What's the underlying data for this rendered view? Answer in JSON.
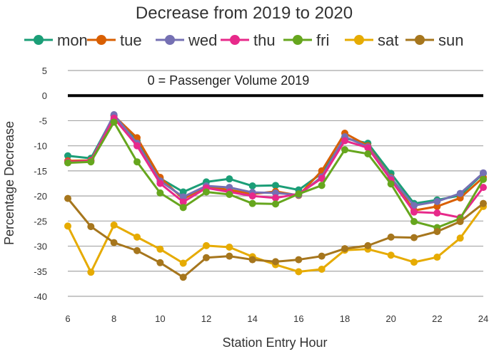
{
  "chart_data": {
    "type": "line",
    "title": "Decrease from 2019 to 2020",
    "xlabel": "Station Entry Hour",
    "ylabel": "Percentage Decrease",
    "xlim": [
      6,
      24
    ],
    "ylim": [
      -40,
      5
    ],
    "xticks": [
      6,
      8,
      10,
      12,
      14,
      16,
      18,
      20,
      22,
      24
    ],
    "yticks": [
      5,
      0,
      -5,
      -10,
      -15,
      -20,
      -25,
      -30,
      -35,
      -40
    ],
    "grid": true,
    "legend_position": "top",
    "reference_line": {
      "y": 0,
      "label": "0 = Passenger Volume 2019",
      "color": "#000000"
    },
    "x": [
      6,
      7,
      8,
      9,
      10,
      11,
      12,
      13,
      14,
      15,
      16,
      17,
      18,
      19,
      20,
      21,
      22,
      23,
      24
    ],
    "series": [
      {
        "name": "mon",
        "color": "#1b9e77",
        "values": [
          -12,
          -12.5,
          -4,
          -9,
          -16.5,
          -19.2,
          -17.2,
          -16.6,
          -18,
          -17.9,
          -18.8,
          -15.5,
          -8.5,
          -9.5,
          -15.5,
          -21.5,
          -20.8,
          -19.9,
          -15.5
        ]
      },
      {
        "name": "tue",
        "color": "#d95f02",
        "values": [
          -13,
          -12.9,
          -4,
          -8.4,
          -16.3,
          -20.6,
          -18.1,
          -18.8,
          -19.6,
          -19.1,
          -19.9,
          -15,
          -7.5,
          -10,
          -16.3,
          -22.9,
          -22.1,
          -20.4,
          -16.3
        ]
      },
      {
        "name": "wed",
        "color": "#7570b3",
        "values": [
          -13.3,
          -13,
          -3.8,
          -9.5,
          -17,
          -20.2,
          -18,
          -18.3,
          -19.3,
          -19.4,
          -19.8,
          -16.2,
          -8.2,
          -10.2,
          -16.4,
          -21.9,
          -21.1,
          -19.5,
          -15.4
        ]
      },
      {
        "name": "thu",
        "color": "#e7298a",
        "values": [
          -13.2,
          -13,
          -4.5,
          -10,
          -17.5,
          -21.2,
          -18.4,
          -19.2,
          -20,
          -20.4,
          -19.6,
          -16.5,
          -9,
          -10.4,
          -16.8,
          -23.2,
          -23.4,
          -24.3,
          -18.3
        ]
      },
      {
        "name": "fri",
        "color": "#66a61e",
        "values": [
          -13.4,
          -13.2,
          -5.3,
          -13.2,
          -19.4,
          -22.3,
          -19.2,
          -19.7,
          -21.5,
          -21.6,
          -19.6,
          -17.9,
          -10.8,
          -11.6,
          -17.6,
          -25.1,
          -26.3,
          -24.5,
          -16.7
        ]
      },
      {
        "name": "sat",
        "color": "#e6ab02",
        "values": [
          -26,
          -35.2,
          -25.8,
          -28.2,
          -30.6,
          -33.4,
          -29.9,
          -30.2,
          -32.1,
          -33.7,
          -35.1,
          -34.6,
          -30.8,
          -30.6,
          -31.8,
          -33.2,
          -32.2,
          -28.4,
          -22.1
        ]
      },
      {
        "name": "sun",
        "color": "#a6761d",
        "values": [
          -20.5,
          -26.1,
          -29.3,
          -30.9,
          -33.3,
          -36.2,
          -32.3,
          -32,
          -32.7,
          -33.1,
          -32.7,
          -32,
          -30.5,
          -29.9,
          -28.2,
          -28.3,
          -27.1,
          -25.1,
          -21.5
        ]
      }
    ]
  }
}
